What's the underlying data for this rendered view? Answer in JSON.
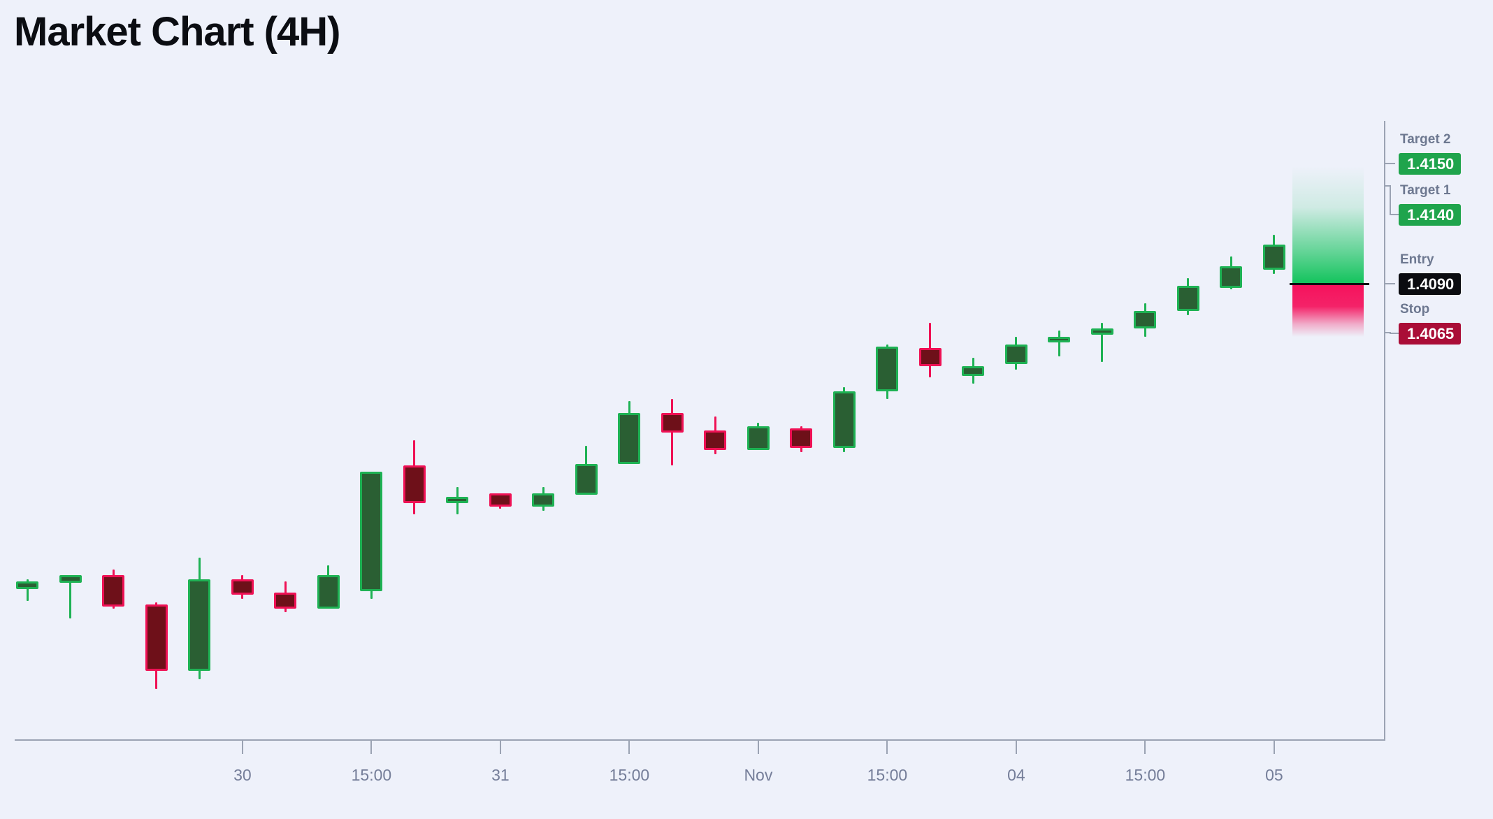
{
  "title": "Market Chart (4H)",
  "chart_data": {
    "type": "candlestick",
    "timeframe": "4H",
    "grid": false,
    "x_tick_labels": [
      "30",
      "15:00",
      "31",
      "15:00",
      "Nov",
      "15:00",
      "04",
      "15:00",
      "05"
    ],
    "y_range": [
      1.3875,
      1.4175
    ],
    "candles": [
      {
        "o": 1.3934,
        "h": 1.3939,
        "l": 1.3928,
        "c": 1.3938
      },
      {
        "o": 1.3937,
        "h": 1.3941,
        "l": 1.3919,
        "c": 1.3941
      },
      {
        "o": 1.3941,
        "h": 1.3944,
        "l": 1.3924,
        "c": 1.3925
      },
      {
        "o": 1.3926,
        "h": 1.3927,
        "l": 1.3883,
        "c": 1.3892
      },
      {
        "o": 1.3892,
        "h": 1.395,
        "l": 1.3888,
        "c": 1.3939
      },
      {
        "o": 1.3939,
        "h": 1.3941,
        "l": 1.3929,
        "c": 1.3931
      },
      {
        "o": 1.3932,
        "h": 1.3938,
        "l": 1.3922,
        "c": 1.3924
      },
      {
        "o": 1.3924,
        "h": 1.3946,
        "l": 1.3924,
        "c": 1.3941
      },
      {
        "o": 1.3933,
        "h": 1.3994,
        "l": 1.3929,
        "c": 1.3994
      },
      {
        "o": 1.3997,
        "h": 1.401,
        "l": 1.3972,
        "c": 1.3978
      },
      {
        "o": 1.3978,
        "h": 1.3986,
        "l": 1.3972,
        "c": 1.3981
      },
      {
        "o": 1.3983,
        "h": 1.3983,
        "l": 1.3975,
        "c": 1.3976
      },
      {
        "o": 1.3976,
        "h": 1.3986,
        "l": 1.3974,
        "c": 1.3983
      },
      {
        "o": 1.3982,
        "h": 1.4007,
        "l": 1.3982,
        "c": 1.3998
      },
      {
        "o": 1.3998,
        "h": 1.403,
        "l": 1.3998,
        "c": 1.4024
      },
      {
        "o": 1.4024,
        "h": 1.4031,
        "l": 1.3997,
        "c": 1.4014
      },
      {
        "o": 1.4015,
        "h": 1.4022,
        "l": 1.4003,
        "c": 1.4005
      },
      {
        "o": 1.4005,
        "h": 1.4019,
        "l": 1.4005,
        "c": 1.4017
      },
      {
        "o": 1.4016,
        "h": 1.4017,
        "l": 1.4004,
        "c": 1.4006
      },
      {
        "o": 1.4006,
        "h": 1.4037,
        "l": 1.4004,
        "c": 1.4035
      },
      {
        "o": 1.4035,
        "h": 1.4059,
        "l": 1.4031,
        "c": 1.4058
      },
      {
        "o": 1.4057,
        "h": 1.407,
        "l": 1.4042,
        "c": 1.4048
      },
      {
        "o": 1.4043,
        "h": 1.4052,
        "l": 1.4039,
        "c": 1.4048
      },
      {
        "o": 1.4049,
        "h": 1.4063,
        "l": 1.4046,
        "c": 1.4059
      },
      {
        "o": 1.406,
        "h": 1.4066,
        "l": 1.4053,
        "c": 1.4063
      },
      {
        "o": 1.4064,
        "h": 1.407,
        "l": 1.405,
        "c": 1.4067
      },
      {
        "o": 1.4067,
        "h": 1.408,
        "l": 1.4063,
        "c": 1.4076
      },
      {
        "o": 1.4076,
        "h": 1.4093,
        "l": 1.4074,
        "c": 1.4089
      },
      {
        "o": 1.4088,
        "h": 1.4104,
        "l": 1.4087,
        "c": 1.4099
      },
      {
        "o": 1.4097,
        "h": 1.4115,
        "l": 1.4095,
        "c": 1.411
      }
    ],
    "levels": [
      {
        "label": "Target 2",
        "value": "1.4150",
        "price": 1.415,
        "type": "target"
      },
      {
        "label": "Target 1",
        "value": "1.4140",
        "price": 1.414,
        "type": "target"
      },
      {
        "label": "Entry",
        "value": "1.4090",
        "price": 1.409,
        "type": "entry"
      },
      {
        "label": "Stop",
        "value": "1.4065",
        "price": 1.4065,
        "type": "stop"
      }
    ],
    "legend_position": "right",
    "annotations": [
      "profit zone gradient (entry to targets)",
      "risk zone gradient (entry to stop)"
    ]
  },
  "colors": {
    "background": "#eef1fa",
    "bull_border": "#1eb254",
    "bull_fill": "#2a5f33",
    "bear_border": "#ef1155",
    "bear_fill": "#6e1019",
    "profit_zone": "#12c35c",
    "risk_zone": "#f5115c",
    "entry_line": "#0c0d11",
    "badge_target": "#1fa44c",
    "badge_entry": "#0b0c10",
    "badge_stop": "#aa0d37",
    "axis": "#9ba3b3",
    "axis_text": "#757e99",
    "panel_text": "#6d7890"
  }
}
